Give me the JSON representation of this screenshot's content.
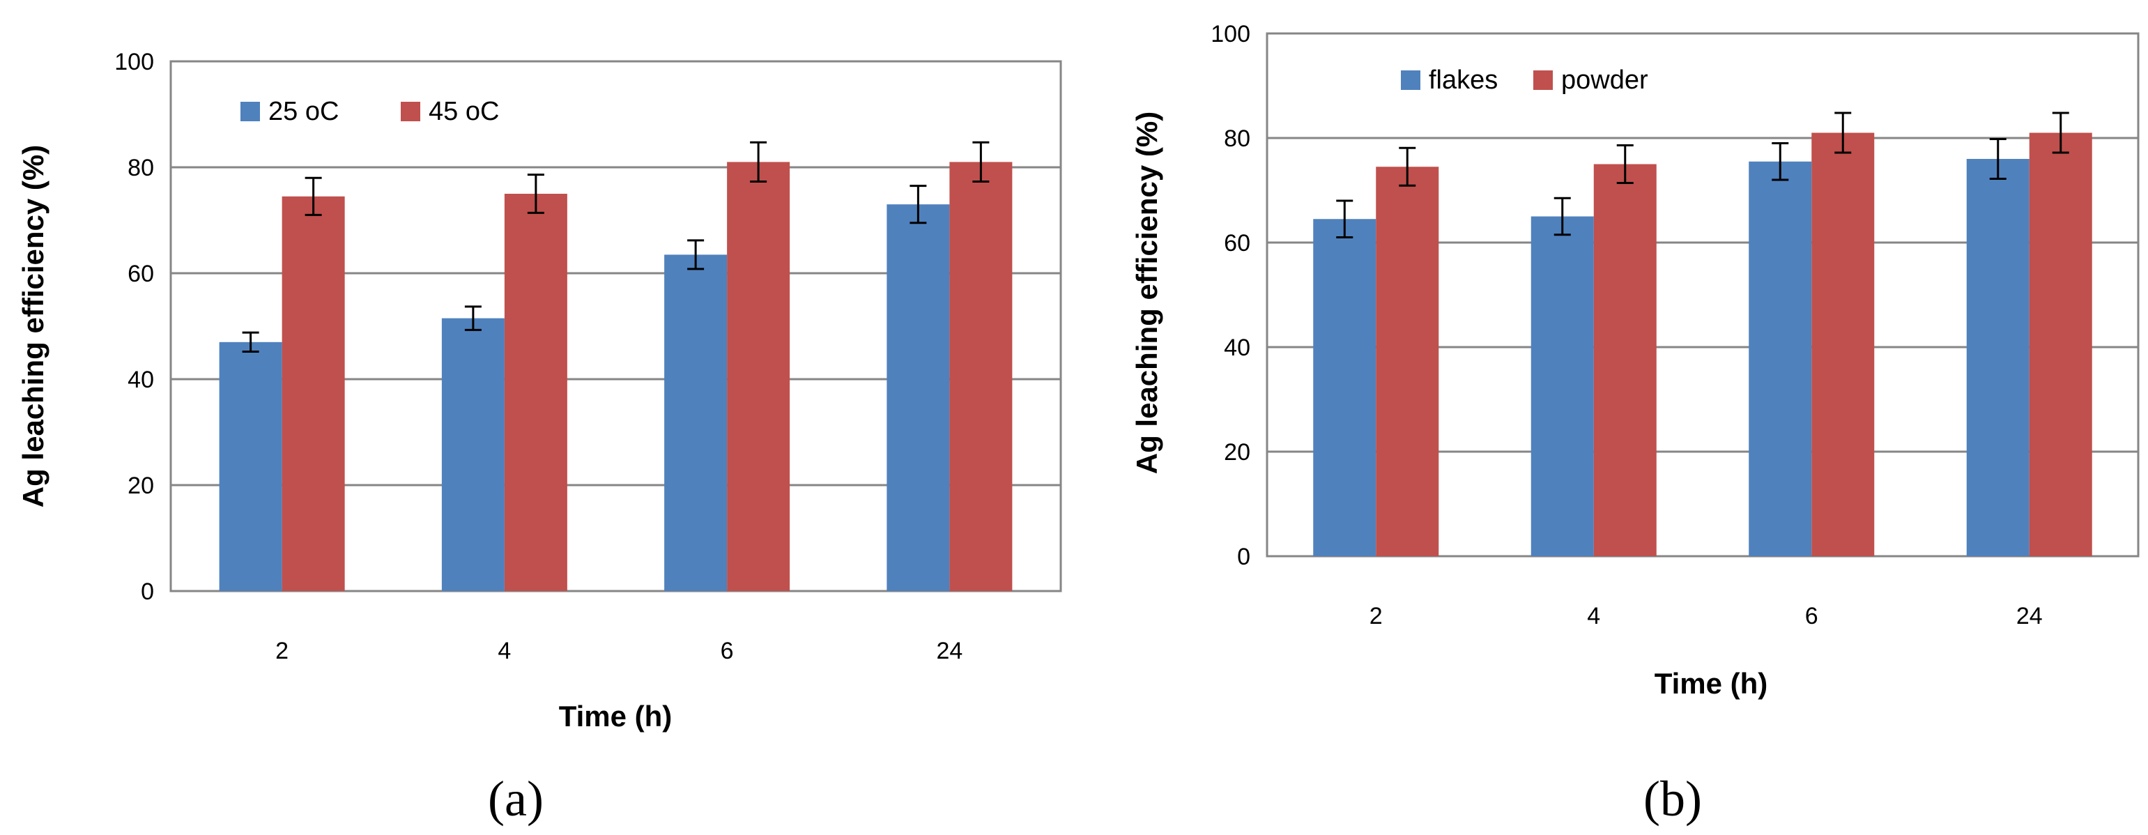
{
  "chart_data": [
    {
      "type": "bar",
      "panel_label": "(a)",
      "categories": [
        "2",
        "4",
        "6",
        "24"
      ],
      "series": [
        {
          "name": "25 oC",
          "color": "#4F81BD",
          "values": [
            47,
            51.5,
            63.5,
            73
          ],
          "errors": [
            1.8,
            2.2,
            2.7,
            3.5
          ]
        },
        {
          "name": "45 oC",
          "color": "#C0504D",
          "values": [
            74.5,
            75,
            81,
            81
          ],
          "errors": [
            3.5,
            3.6,
            3.7,
            3.7
          ]
        }
      ],
      "xlabel": "Time (h)",
      "ylabel": "Ag leaching efficiency (%)",
      "ylim": [
        0,
        100
      ],
      "yticks": [
        "0",
        "20",
        "40",
        "60",
        "80",
        "100"
      ],
      "grid": true,
      "legend_position": "top-left"
    },
    {
      "type": "bar",
      "panel_label": "(b)",
      "categories": [
        "2",
        "4",
        "6",
        "24"
      ],
      "series": [
        {
          "name": "flakes",
          "color": "#4F81BD",
          "values": [
            64.5,
            65,
            75.5,
            76
          ],
          "errors": [
            3.5,
            3.5,
            3.5,
            3.8
          ]
        },
        {
          "name": "powder",
          "color": "#C0504D",
          "values": [
            74.5,
            75,
            81,
            81
          ],
          "errors": [
            3.6,
            3.6,
            3.8,
            3.8
          ]
        }
      ],
      "xlabel": "Time (h)",
      "ylabel": "Ag leaching efficiency (%)",
      "ylim": [
        0,
        100
      ],
      "yticks": [
        "0",
        "20",
        "40",
        "60",
        "80",
        "100"
      ],
      "grid": true,
      "legend_position": "top-left"
    }
  ]
}
